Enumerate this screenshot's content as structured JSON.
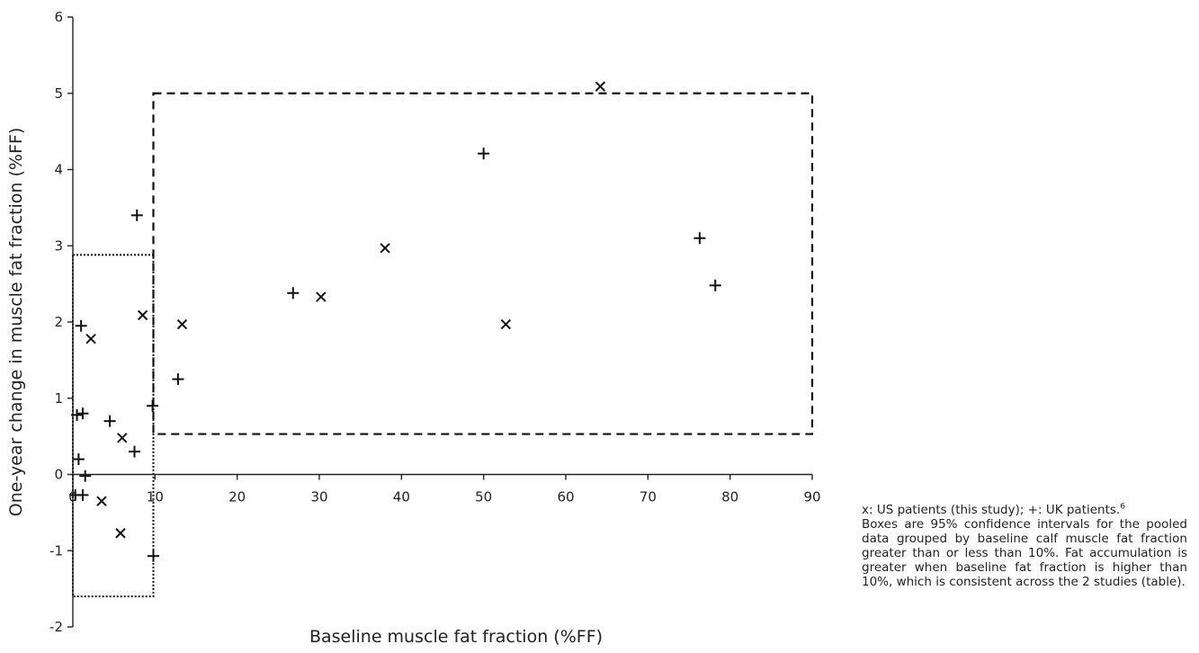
{
  "chart_data": {
    "type": "scatter",
    "xlabel": "Baseline muscle fat fraction (%FF)",
    "ylabel": "One-year change in muscle fat fraction (%FF)",
    "xlim": [
      0,
      90
    ],
    "ylim": [
      -2,
      6
    ],
    "xticks": [
      "0",
      "10",
      "20",
      "30",
      "40",
      "50",
      "60",
      "70",
      "80",
      "90"
    ],
    "yticks": [
      "-2",
      "-1",
      "0",
      "1",
      "2",
      "3",
      "4",
      "5",
      "6"
    ],
    "grid": false,
    "series": [
      {
        "marker": "x",
        "points": [
          [
            2.2,
            1.78
          ],
          [
            8.5,
            2.09
          ],
          [
            13.3,
            1.97
          ],
          [
            30.2,
            2.33
          ],
          [
            38.0,
            2.97
          ],
          [
            52.7,
            1.97
          ],
          [
            64.2,
            5.09
          ],
          [
            6.0,
            0.48
          ],
          [
            3.5,
            -0.35
          ],
          [
            5.8,
            -0.77
          ]
        ]
      },
      {
        "marker": "+",
        "points": [
          [
            1.0,
            1.95
          ],
          [
            0.5,
            0.78
          ],
          [
            4.5,
            0.7
          ],
          [
            1.2,
            0.8
          ],
          [
            0.7,
            0.2
          ],
          [
            1.5,
            -0.02
          ],
          [
            0.3,
            -0.27
          ],
          [
            1.2,
            -0.27
          ],
          [
            7.5,
            0.3
          ],
          [
            9.7,
            0.9
          ],
          [
            7.8,
            3.4
          ],
          [
            12.8,
            1.25
          ],
          [
            26.8,
            2.38
          ],
          [
            50.0,
            4.21
          ],
          [
            76.3,
            3.1
          ],
          [
            78.2,
            2.48
          ],
          [
            9.8,
            -1.07
          ]
        ]
      }
    ],
    "boxes": [
      {
        "style": "dotted",
        "x": [
          0,
          9.8
        ],
        "y": [
          -1.6,
          2.88
        ]
      },
      {
        "style": "dashed",
        "x": [
          9.8,
          90
        ],
        "y": [
          0.53,
          5.0
        ]
      }
    ]
  },
  "caption": {
    "line1": "x: US patients (this study); +: UK patients.",
    "ref": "6",
    "body": "Boxes are 95% confidence intervals for the pooled data grouped by baseline calf mus­cle fat fraction greater than or less than 10%. Fat accumulation is greater when baseline fat fraction is higher than 10%, which is consistent across the 2 studies (table)."
  }
}
